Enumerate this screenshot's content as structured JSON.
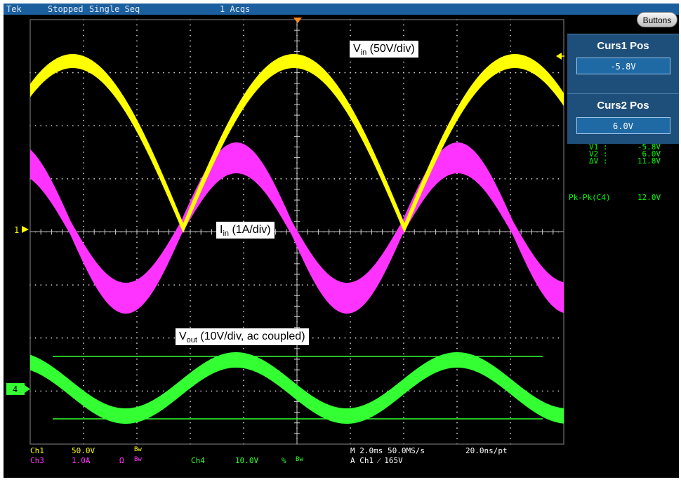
{
  "header": {
    "brand": "Tek",
    "state": "Stopped",
    "mode": "Single Seq",
    "acqs": "1 Acqs",
    "buttons_label": "Buttons"
  },
  "cursors": {
    "curs1_title": "Curs1 Pos",
    "curs1_value": "-5.8V",
    "curs2_title": "Curs2 Pos",
    "curs2_value": "6.0V",
    "readout": [
      {
        "label": "V1 :",
        "value": "-5.8V"
      },
      {
        "label": "V2 :",
        "value": "6.0V"
      },
      {
        "label": "ΔV :",
        "value": "11.8V"
      }
    ]
  },
  "measurement": {
    "label": "Pk-Pk(C4)",
    "value": "12.0V"
  },
  "markers": {
    "ch1": "1",
    "ch4": "4"
  },
  "annotations": {
    "vin_main": "V",
    "vin_sub": "in",
    "vin_rest": " (50V/div)",
    "iin_main": "I",
    "iin_sub": "in",
    "iin_rest": " (1A/div)",
    "vout_main": "V",
    "vout_sub": "out",
    "vout_rest": " (10V/div, ac coupled)"
  },
  "status": {
    "ch1_name": "Ch1",
    "ch1_scale": "50.0V",
    "ch1_bw": "Bw",
    "ch3_name": "Ch3",
    "ch3_scale": "1.0A",
    "ch3_ohm": "Ω",
    "ch3_bw": "Bw",
    "ch4_name": "Ch4",
    "ch4_scale": "10.0V",
    "ch4_sym": "%",
    "ch4_bw": "Bw",
    "timebase": "M 2.0ms 50.0MS/s",
    "resolution": "20.0ns/pt",
    "trigger": "A  Ch1  ⁄  165V"
  },
  "colors": {
    "ch1": "#ffff00",
    "ch3": "#ff33ff",
    "ch4": "#33ff33",
    "grid": "#cfcfcf",
    "panel": "#1e4f7a",
    "topbar": "#1c5f9e"
  }
}
